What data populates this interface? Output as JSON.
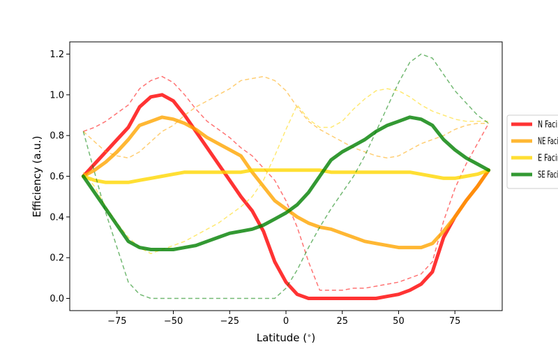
{
  "chart_data": {
    "type": "line",
    "title": "",
    "xlabel": "Latitude ($^\\circ$)",
    "ylabel": "Efficiency (a.u.)",
    "xlim": [
      -96,
      96
    ],
    "ylim": [
      -0.06,
      1.26
    ],
    "x_ticks": [
      -75,
      -50,
      -25,
      0,
      25,
      50,
      75
    ],
    "y_ticks": [
      0.0,
      0.2,
      0.4,
      0.6,
      0.8,
      1.0,
      1.2
    ],
    "x_tick_labels": [
      "−75",
      "−50",
      "−25",
      "0",
      "25",
      "50",
      "75"
    ],
    "y_tick_labels": [
      "0.0",
      "0.2",
      "0.4",
      "0.6",
      "0.8",
      "1.0",
      "1.2"
    ],
    "grid": false,
    "legend_position": "right",
    "x": [
      -90,
      -85,
      -80,
      -75,
      -70,
      -65,
      -60,
      -55,
      -50,
      -45,
      -40,
      -35,
      -30,
      -25,
      -20,
      -15,
      -10,
      -5,
      0,
      5,
      10,
      15,
      20,
      25,
      30,
      35,
      40,
      45,
      50,
      55,
      60,
      65,
      70,
      75,
      80,
      85,
      90
    ],
    "series": [
      {
        "name": "N Facing",
        "color": "#ff0000",
        "values": [
          0.6,
          0.66,
          0.72,
          0.78,
          0.84,
          0.94,
          0.99,
          1.0,
          0.97,
          0.9,
          0.82,
          0.74,
          0.66,
          0.58,
          0.5,
          0.43,
          0.33,
          0.18,
          0.08,
          0.02,
          0.0,
          0.0,
          0.0,
          0.0,
          0.0,
          0.0,
          0.0,
          0.01,
          0.02,
          0.04,
          0.07,
          0.13,
          0.3,
          0.4,
          0.48,
          0.55,
          0.63
        ],
        "dashed_values": [
          0.82,
          0.84,
          0.87,
          0.91,
          0.95,
          1.03,
          1.07,
          1.09,
          1.06,
          1.0,
          0.93,
          0.87,
          0.83,
          0.79,
          0.74,
          0.7,
          0.64,
          0.58,
          0.48,
          0.35,
          0.18,
          0.04,
          0.04,
          0.04,
          0.05,
          0.05,
          0.06,
          0.07,
          0.08,
          0.1,
          0.12,
          0.18,
          0.38,
          0.54,
          0.66,
          0.76,
          0.86
        ]
      },
      {
        "name": "NE Facing",
        "color": "#ffa500",
        "values": [
          0.6,
          0.63,
          0.67,
          0.72,
          0.78,
          0.85,
          0.87,
          0.89,
          0.88,
          0.86,
          0.83,
          0.79,
          0.76,
          0.73,
          0.7,
          0.62,
          0.55,
          0.48,
          0.44,
          0.4,
          0.37,
          0.35,
          0.34,
          0.32,
          0.3,
          0.28,
          0.27,
          0.26,
          0.25,
          0.25,
          0.25,
          0.27,
          0.33,
          0.4,
          0.48,
          0.55,
          0.63
        ],
        "dashed_values": [
          0.82,
          0.77,
          0.72,
          0.7,
          0.69,
          0.72,
          0.77,
          0.82,
          0.85,
          0.9,
          0.94,
          0.97,
          1.0,
          1.03,
          1.07,
          1.08,
          1.09,
          1.07,
          1.02,
          0.94,
          0.87,
          0.83,
          0.8,
          0.77,
          0.74,
          0.72,
          0.7,
          0.69,
          0.7,
          0.73,
          0.76,
          0.78,
          0.8,
          0.83,
          0.85,
          0.86,
          0.86
        ]
      },
      {
        "name": "E Facing",
        "color": "#ffd700",
        "values": [
          0.6,
          0.58,
          0.57,
          0.57,
          0.57,
          0.58,
          0.59,
          0.6,
          0.61,
          0.62,
          0.62,
          0.62,
          0.62,
          0.62,
          0.62,
          0.63,
          0.63,
          0.63,
          0.63,
          0.63,
          0.63,
          0.63,
          0.62,
          0.62,
          0.62,
          0.62,
          0.62,
          0.62,
          0.62,
          0.62,
          0.61,
          0.6,
          0.59,
          0.59,
          0.6,
          0.61,
          0.63
        ],
        "dashed_values": [
          0.62,
          0.55,
          0.45,
          0.37,
          0.3,
          0.25,
          0.22,
          0.24,
          0.26,
          0.28,
          0.31,
          0.34,
          0.37,
          0.41,
          0.45,
          0.5,
          0.58,
          0.7,
          0.83,
          0.95,
          0.88,
          0.84,
          0.84,
          0.87,
          0.93,
          0.98,
          1.02,
          1.03,
          1.02,
          0.99,
          0.95,
          0.92,
          0.9,
          0.88,
          0.87,
          0.87,
          0.87
        ]
      },
      {
        "name": "SE Facing",
        "color": "#008000",
        "values": [
          0.6,
          0.52,
          0.44,
          0.36,
          0.28,
          0.25,
          0.24,
          0.24,
          0.24,
          0.25,
          0.26,
          0.28,
          0.3,
          0.32,
          0.33,
          0.34,
          0.36,
          0.39,
          0.42,
          0.46,
          0.52,
          0.6,
          0.68,
          0.72,
          0.75,
          0.78,
          0.82,
          0.85,
          0.87,
          0.89,
          0.88,
          0.85,
          0.78,
          0.73,
          0.69,
          0.66,
          0.63
        ],
        "dashed_values": [
          0.82,
          0.62,
          0.42,
          0.25,
          0.08,
          0.02,
          0.0,
          0.0,
          0.0,
          0.0,
          0.0,
          0.0,
          0.0,
          0.0,
          0.0,
          0.0,
          0.0,
          0.0,
          0.05,
          0.14,
          0.25,
          0.35,
          0.44,
          0.52,
          0.6,
          0.7,
          0.82,
          0.94,
          1.06,
          1.16,
          1.2,
          1.18,
          1.1,
          1.02,
          0.96,
          0.9,
          0.86
        ]
      }
    ]
  }
}
